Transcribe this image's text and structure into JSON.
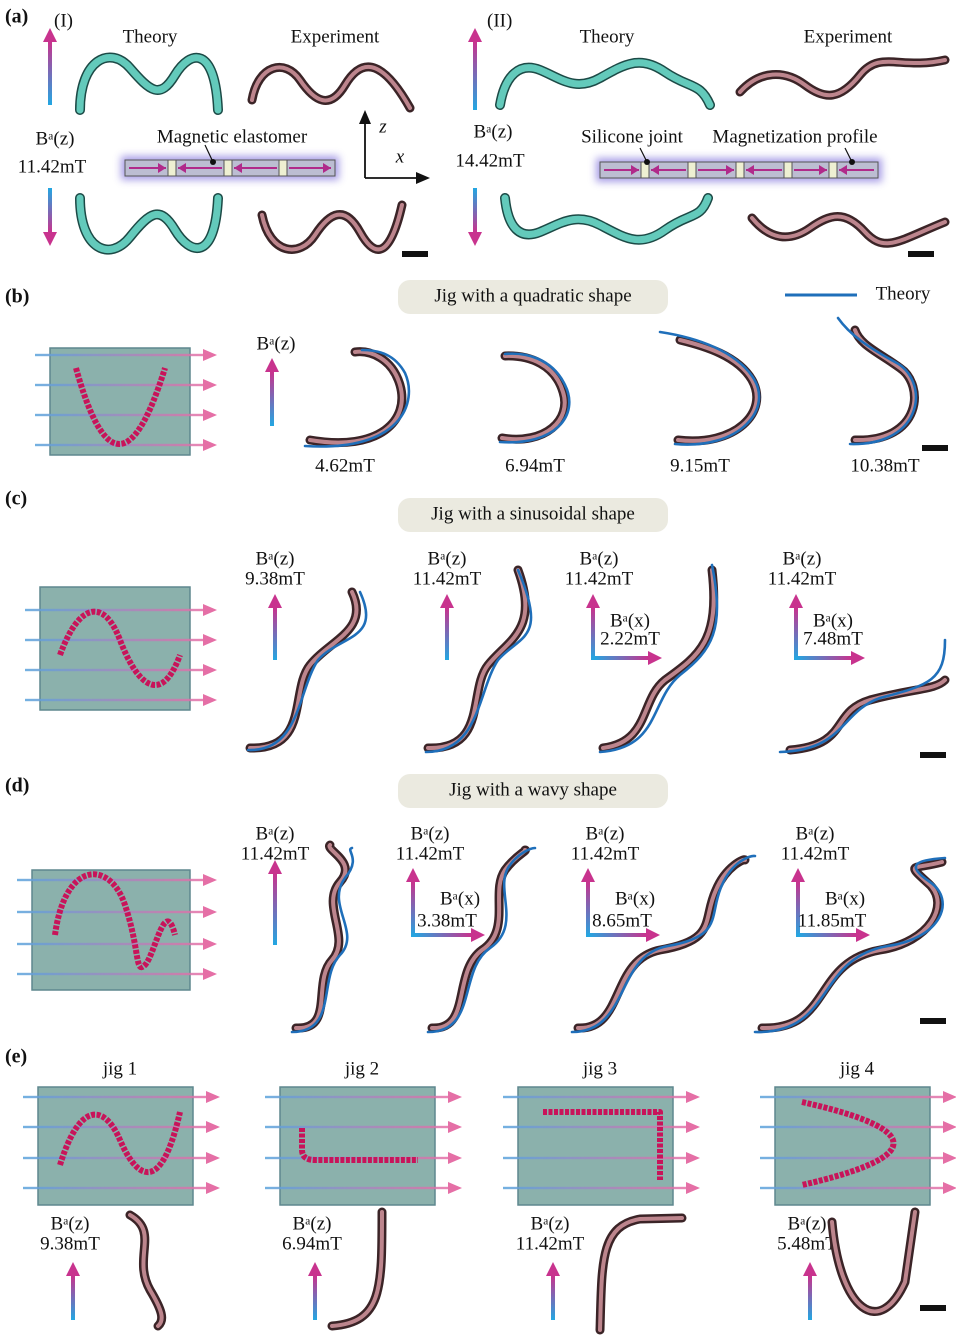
{
  "panel_a": {
    "label": "(a)",
    "left": {
      "label": "(I)",
      "theory": "Theory",
      "experiment": "Experiment",
      "field": "Bᵃ(z)",
      "field_value": "11.42mT",
      "callout": "Magnetic elastomer"
    },
    "axes": {
      "z": "z",
      "x": "x"
    },
    "right": {
      "label": "(II)",
      "theory": "Theory",
      "experiment": "Experiment",
      "field": "Bᵃ(z)",
      "field_value": "14.42mT",
      "callouts": [
        "Silicone joint",
        "Magnetization profile"
      ]
    }
  },
  "panel_b": {
    "label": "(b)",
    "banner": "Jig with a quadratic shape",
    "legend": "Theory",
    "field": "Bᵃ(z)",
    "field_values": [
      "4.62mT",
      "6.94mT",
      "9.15mT",
      "10.38mT"
    ]
  },
  "panel_c": {
    "label": "(c)",
    "banner": "Jig with a sinusoidal shape",
    "items": [
      {
        "field_z": "Bᵃ(z)",
        "value_z": "9.38mT"
      },
      {
        "field_z": "Bᵃ(z)",
        "value_z": "11.42mT"
      },
      {
        "field_z": "Bᵃ(z)",
        "value_z": "11.42mT",
        "field_x": "Bᵃ(x)",
        "value_x": "2.22mT"
      },
      {
        "field_z": "Bᵃ(z)",
        "value_z": "11.42mT",
        "field_x": "Bᵃ(x)",
        "value_x": "7.48mT"
      }
    ]
  },
  "panel_d": {
    "label": "(d)",
    "banner": "Jig with a wavy shape",
    "items": [
      {
        "field_z": "Bᵃ(z)",
        "value_z": "11.42mT"
      },
      {
        "field_z": "Bᵃ(z)",
        "value_z": "11.42mT",
        "field_x": "Bᵃ(x)",
        "value_x": "3.38mT"
      },
      {
        "field_z": "Bᵃ(z)",
        "value_z": "11.42mT",
        "field_x": "Bᵃ(x)",
        "value_x": "8.65mT"
      },
      {
        "field_z": "Bᵃ(z)",
        "value_z": "11.42mT",
        "field_x": "Bᵃ(x)",
        "value_x": "11.85mT"
      }
    ]
  },
  "panel_e": {
    "label": "(e)",
    "jigs": [
      {
        "title": "jig 1",
        "field_z": "Bᵃ(z)",
        "value_z": "9.38mT"
      },
      {
        "title": "jig 2",
        "field_z": "Bᵃ(z)",
        "value_z": "6.94mT"
      },
      {
        "title": "jig 3",
        "field_z": "Bᵃ(z)",
        "value_z": "11.42mT"
      },
      {
        "title": "jig 4",
        "field_z": "Bᵃ(z)",
        "value_z": "5.48mT"
      }
    ]
  }
}
